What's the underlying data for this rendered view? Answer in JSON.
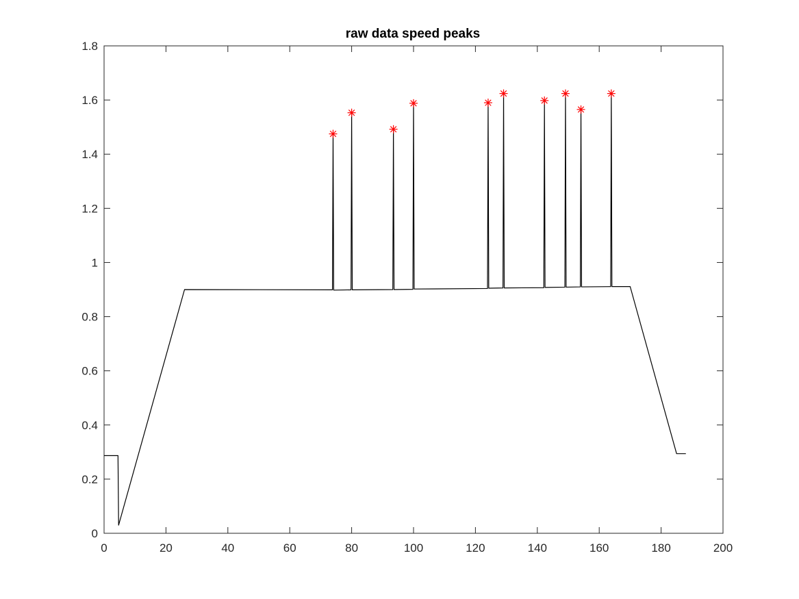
{
  "chart_data": {
    "type": "line",
    "title": "raw data speed peaks",
    "xlabel": "",
    "ylabel": "",
    "xlim": [
      0,
      200
    ],
    "ylim": [
      0,
      1.8
    ],
    "xticks": [
      0,
      20,
      40,
      60,
      80,
      100,
      120,
      140,
      160,
      180,
      200
    ],
    "yticks": [
      0,
      0.2,
      0.4,
      0.6,
      0.8,
      1,
      1.2,
      1.4,
      1.6,
      1.8
    ],
    "xtick_labels": [
      "0",
      "20",
      "40",
      "60",
      "80",
      "100",
      "120",
      "140",
      "160",
      "180",
      "200"
    ],
    "ytick_labels": [
      "0",
      "0.2",
      "0.4",
      "0.6",
      "0.8",
      "1",
      "1.2",
      "1.4",
      "1.6",
      "1.8"
    ],
    "grid": false,
    "series": [
      {
        "kind": "line",
        "color": "#000000",
        "x": [
          0,
          4.5,
          4.7,
          26,
          73.8,
          74.0,
          74.2,
          79.8,
          80.0,
          80.2,
          93.3,
          93.5,
          93.7,
          99.8,
          100.0,
          100.2,
          123.9,
          124.1,
          124.3,
          128.9,
          129.1,
          129.3,
          142.1,
          142.3,
          142.5,
          148.9,
          149.1,
          149.3,
          153.9,
          154.1,
          154.3,
          163.7,
          163.9,
          164.1,
          170,
          185,
          188
        ],
        "y": [
          0.287,
          0.287,
          0.03,
          0.9,
          0.899,
          1.475,
          0.898,
          0.899,
          1.553,
          0.899,
          0.9,
          1.492,
          0.9,
          0.901,
          1.588,
          0.902,
          0.904,
          1.59,
          0.905,
          0.906,
          1.624,
          0.906,
          0.907,
          1.598,
          0.908,
          0.909,
          1.624,
          0.909,
          0.91,
          1.565,
          0.91,
          0.911,
          1.624,
          0.911,
          0.911,
          0.294,
          0.294
        ]
      },
      {
        "kind": "markers",
        "marker": "asterisk",
        "color": "#ff0000",
        "x": [
          74.0,
          80.0,
          93.5,
          100.0,
          124.1,
          129.1,
          142.3,
          149.1,
          154.1,
          163.9
        ],
        "y": [
          1.475,
          1.553,
          1.492,
          1.588,
          1.59,
          1.624,
          1.598,
          1.624,
          1.565,
          1.624
        ]
      }
    ]
  }
}
